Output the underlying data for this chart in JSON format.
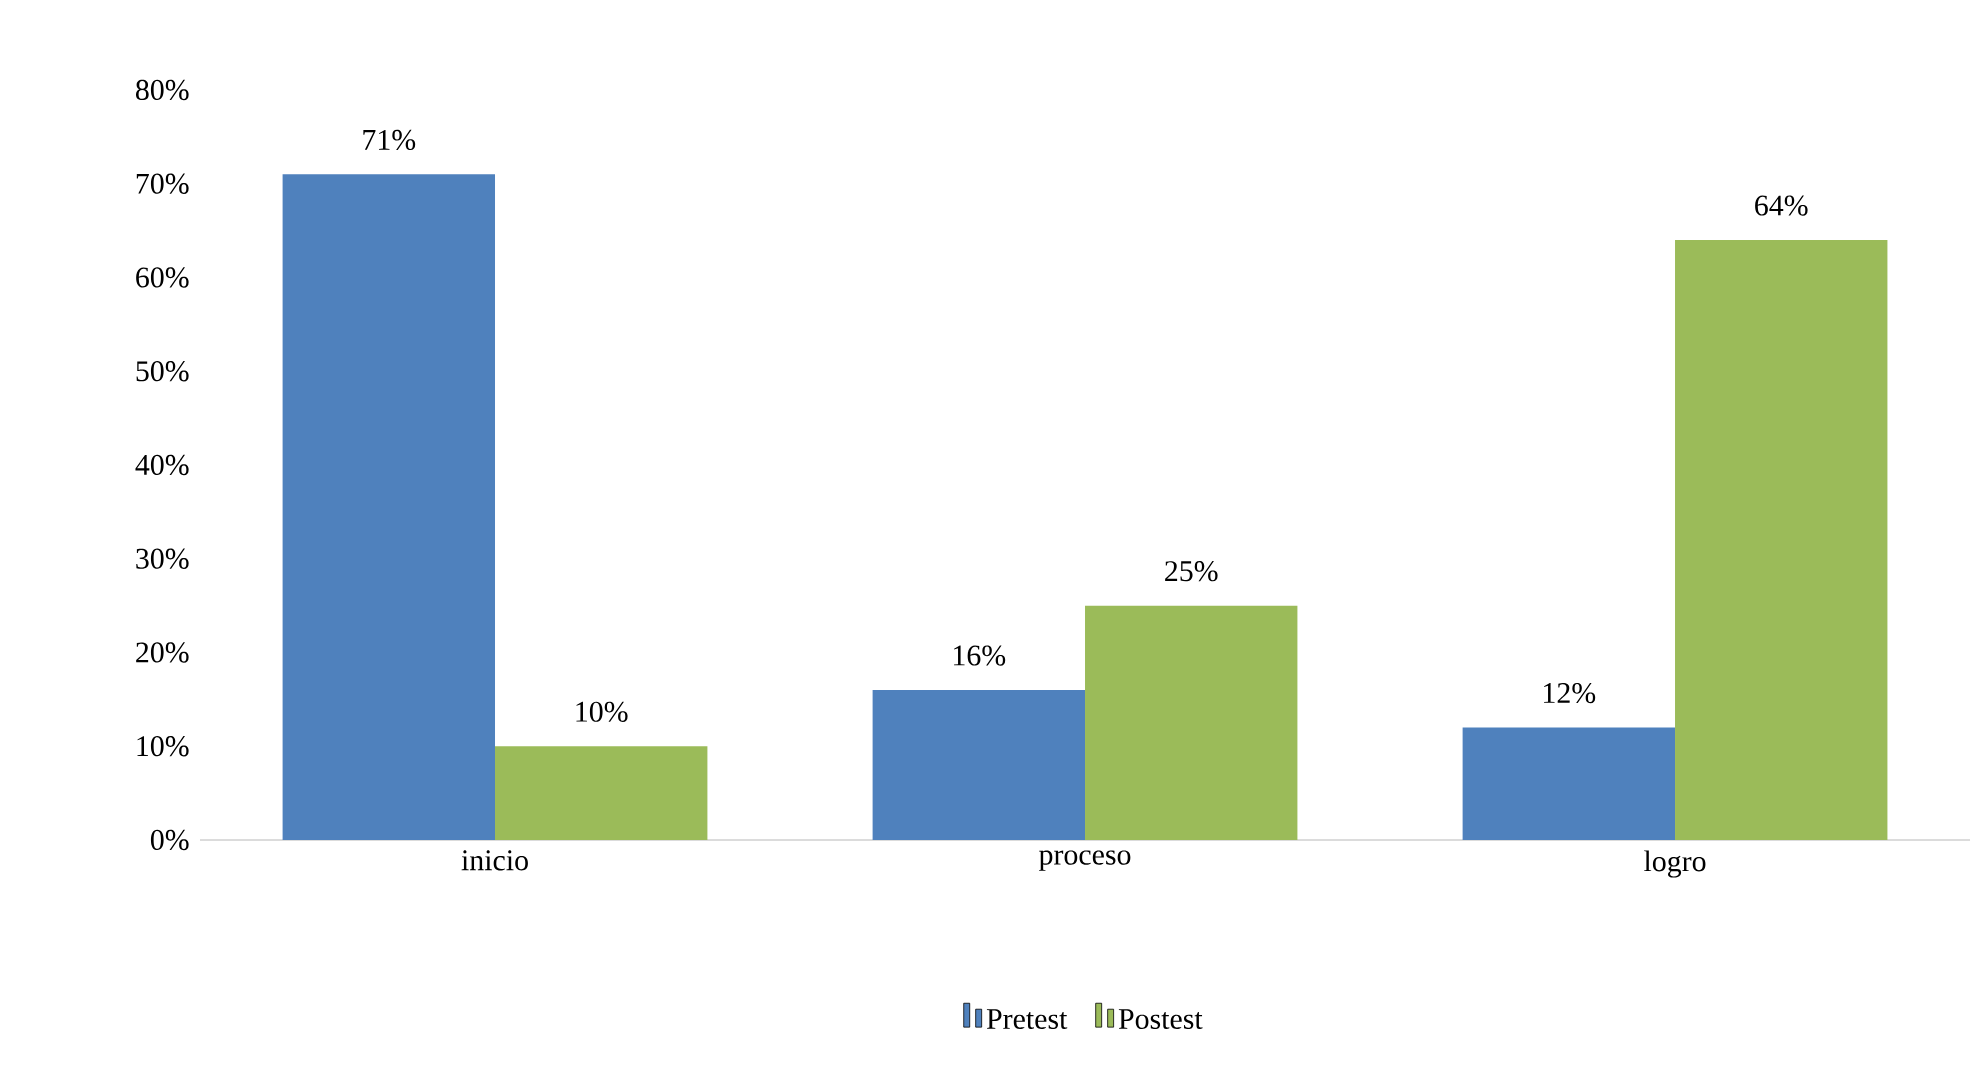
{
  "chart_data": {
    "type": "bar",
    "categories": [
      "inicio",
      "proceso",
      "logro"
    ],
    "series": [
      {
        "name": "Pretest",
        "color": "#4f81bd",
        "values": [
          71,
          16,
          12
        ],
        "value_labels": [
          "71%",
          "16%",
          "12%"
        ]
      },
      {
        "name": "Postest",
        "color": "#9bbb59",
        "values": [
          10,
          25,
          64
        ],
        "value_labels": [
          "10%",
          "25%",
          "64%"
        ]
      }
    ],
    "ylim": [
      0,
      80
    ],
    "yticks": [
      {
        "value": 0,
        "label": "0%"
      },
      {
        "value": 10,
        "label": "10%"
      },
      {
        "value": 20,
        "label": "20%"
      },
      {
        "value": 30,
        "label": "30%"
      },
      {
        "value": 40,
        "label": "40%"
      },
      {
        "value": 50,
        "label": "50%"
      },
      {
        "value": 60,
        "label": "60%"
      },
      {
        "value": 70,
        "label": "70%"
      },
      {
        "value": 80,
        "label": "80%"
      }
    ],
    "legend": "bottom"
  }
}
